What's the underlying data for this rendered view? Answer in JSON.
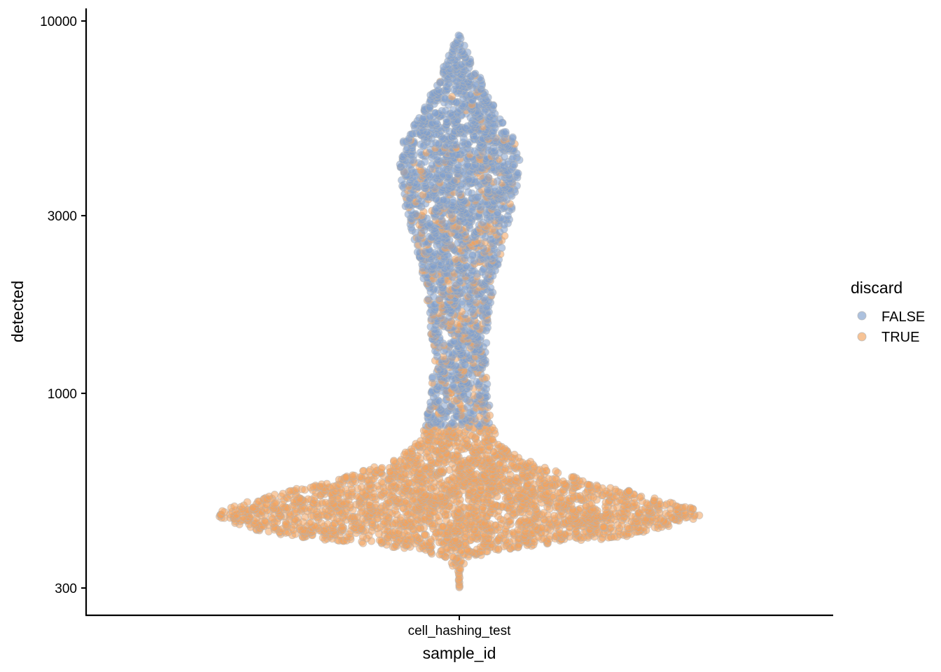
{
  "chart_data": {
    "type": "scatter",
    "subtype": "violin-beeswarm",
    "xlabel": "sample_id",
    "ylabel": "detected",
    "categories": [
      "cell_hashing_test"
    ],
    "y_scale": "log10",
    "ylim": [
      260,
      11500
    ],
    "y_ticks": [
      300,
      1000,
      3000,
      10000
    ],
    "y_tick_labels": [
      "300",
      "1000",
      "3000",
      "10000"
    ],
    "grid": false,
    "legend": {
      "title": "discard",
      "position": "right",
      "entries": [
        {
          "label": "FALSE",
          "color": "#7f9fcc"
        },
        {
          "label": "TRUE",
          "color": "#f2a35c"
        }
      ]
    },
    "outline_color": "#b4b4b4",
    "violin_profile": [
      {
        "detected": 300,
        "half_width": 0.3
      },
      {
        "detected": 330,
        "half_width": 3
      },
      {
        "detected": 360,
        "half_width": 18
      },
      {
        "detected": 380,
        "half_width": 65
      },
      {
        "detected": 395,
        "half_width": 140
      },
      {
        "detected": 410,
        "half_width": 230
      },
      {
        "detected": 430,
        "half_width": 300
      },
      {
        "detected": 455,
        "half_width": 345
      },
      {
        "detected": 470,
        "half_width": 358
      },
      {
        "detected": 490,
        "half_width": 345
      },
      {
        "detected": 520,
        "half_width": 295
      },
      {
        "detected": 560,
        "half_width": 225
      },
      {
        "detected": 610,
        "half_width": 150
      },
      {
        "detected": 670,
        "half_width": 90
      },
      {
        "detected": 740,
        "half_width": 60
      },
      {
        "detected": 820,
        "half_width": 50
      },
      {
        "detected": 950,
        "half_width": 44
      },
      {
        "detected": 1100,
        "half_width": 40
      },
      {
        "detected": 1300,
        "half_width": 40
      },
      {
        "detected": 1600,
        "half_width": 44
      },
      {
        "detected": 2000,
        "half_width": 52
      },
      {
        "detected": 2500,
        "half_width": 64
      },
      {
        "detected": 3000,
        "half_width": 76
      },
      {
        "detected": 3600,
        "half_width": 86
      },
      {
        "detected": 4200,
        "half_width": 89
      },
      {
        "detected": 4800,
        "half_width": 82
      },
      {
        "detected": 5600,
        "half_width": 58
      },
      {
        "detected": 6500,
        "half_width": 40
      },
      {
        "detected": 7600,
        "half_width": 22
      },
      {
        "detected": 8600,
        "half_width": 9
      },
      {
        "detected": 9200,
        "half_width": 1
      }
    ],
    "discard_true_fraction": [
      {
        "detected": 300,
        "fraction": 1.0
      },
      {
        "detected": 800,
        "fraction": 1.0
      },
      {
        "detected": 830,
        "fraction": 0.25
      },
      {
        "detected": 1300,
        "fraction": 0.22
      },
      {
        "detected": 2000,
        "fraction": 0.22
      },
      {
        "detected": 2600,
        "fraction": 0.28
      },
      {
        "detected": 3200,
        "fraction": 0.14
      },
      {
        "detected": 4500,
        "fraction": 0.07
      },
      {
        "detected": 6500,
        "fraction": 0.03
      },
      {
        "detected": 9200,
        "fraction": 0.0
      }
    ]
  }
}
